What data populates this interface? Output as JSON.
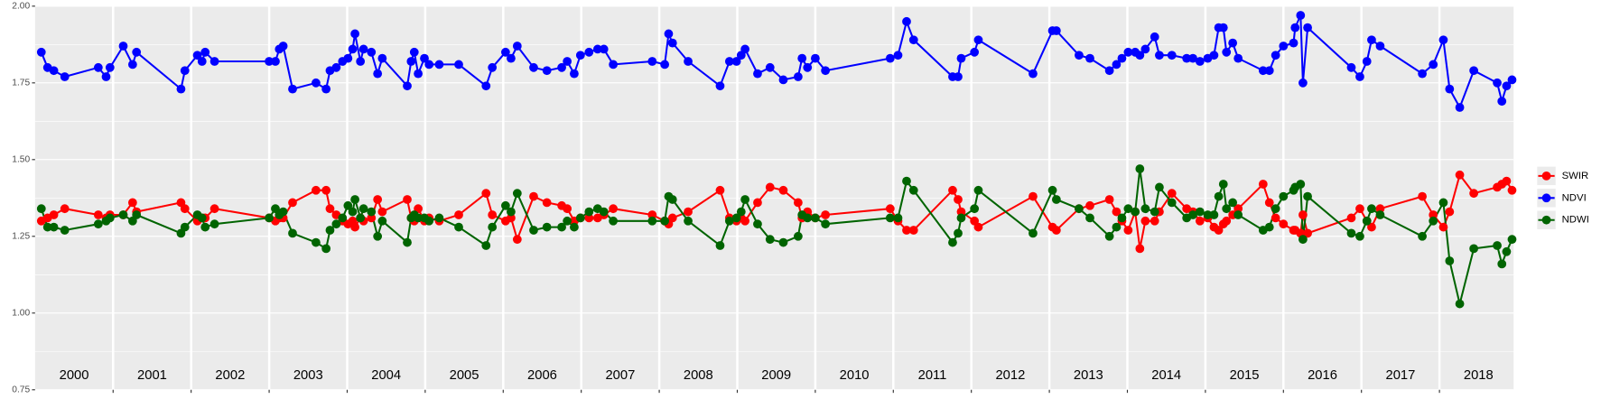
{
  "chart_data": {
    "type": "line",
    "x": [
      2000.08,
      2000.16,
      2000.24,
      2000.38,
      2000.81,
      2000.91,
      2000.96,
      2001.13,
      2001.25,
      2001.3,
      2001.87,
      2001.92,
      2002.08,
      2002.14,
      2002.18,
      2002.3,
      2003.0,
      2003.08,
      2003.13,
      2003.18,
      2003.3,
      2003.6,
      2003.73,
      2003.78,
      2003.86,
      2003.94,
      2004.01,
      2004.07,
      2004.1,
      2004.17,
      2004.21,
      2004.31,
      2004.39,
      2004.45,
      2004.77,
      2004.82,
      2004.86,
      2004.91,
      2004.99,
      2005.05,
      2005.18,
      2005.43,
      2005.78,
      2005.86,
      2006.03,
      2006.1,
      2006.18,
      2006.39,
      2006.56,
      2006.75,
      2006.82,
      2006.91,
      2006.99,
      2007.1,
      2007.21,
      2007.29,
      2007.41,
      2007.91,
      2008.07,
      2008.12,
      2008.17,
      2008.37,
      2008.78,
      2008.9,
      2008.99,
      2009.05,
      2009.1,
      2009.26,
      2009.42,
      2009.59,
      2009.78,
      2009.83,
      2009.9,
      2010.0,
      2010.13,
      2010.96,
      2011.06,
      2011.17,
      2011.26,
      2011.76,
      2011.83,
      2011.87,
      2012.04,
      2012.09,
      2012.79,
      2013.04,
      2013.09,
      2013.38,
      2013.52,
      2013.77,
      2013.86,
      2013.93,
      2014.01,
      2014.1,
      2014.16,
      2014.23,
      2014.35,
      2014.41,
      2014.57,
      2014.76,
      2014.84,
      2014.93,
      2015.03,
      2015.11,
      2015.17,
      2015.23,
      2015.27,
      2015.35,
      2015.42,
      2015.74,
      2015.82,
      2015.9,
      2016.0,
      2016.13,
      2016.15,
      2016.22,
      2016.25,
      2016.31,
      2016.87,
      2016.98,
      2017.07,
      2017.13,
      2017.24,
      2017.78,
      2017.92,
      2018.05,
      2018.13,
      2018.26,
      2018.44,
      2018.74,
      2018.8,
      2018.86,
      2018.93
    ],
    "series": [
      {
        "name": "SWIR",
        "color": "#ff0000",
        "values": [
          1.3,
          1.31,
          1.32,
          1.34,
          1.32,
          1.31,
          1.32,
          1.32,
          1.36,
          1.33,
          1.36,
          1.34,
          1.3,
          1.31,
          1.31,
          1.34,
          1.31,
          1.3,
          1.31,
          1.31,
          1.36,
          1.4,
          1.4,
          1.34,
          1.32,
          1.3,
          1.29,
          1.3,
          1.28,
          1.31,
          1.3,
          1.31,
          1.37,
          1.33,
          1.37,
          1.31,
          1.3,
          1.34,
          1.3,
          1.31,
          1.3,
          1.32,
          1.39,
          1.32,
          1.3,
          1.31,
          1.24,
          1.38,
          1.36,
          1.35,
          1.34,
          1.3,
          1.31,
          1.31,
          1.31,
          1.32,
          1.34,
          1.32,
          1.3,
          1.29,
          1.31,
          1.33,
          1.4,
          1.31,
          1.3,
          1.31,
          1.3,
          1.36,
          1.41,
          1.4,
          1.36,
          1.31,
          1.33,
          1.31,
          1.32,
          1.34,
          1.3,
          1.27,
          1.27,
          1.4,
          1.37,
          1.33,
          1.3,
          1.28,
          1.38,
          1.28,
          1.27,
          1.34,
          1.35,
          1.37,
          1.33,
          1.3,
          1.27,
          1.33,
          1.21,
          1.3,
          1.3,
          1.33,
          1.39,
          1.34,
          1.33,
          1.3,
          1.31,
          1.28,
          1.27,
          1.29,
          1.3,
          1.32,
          1.34,
          1.42,
          1.36,
          1.31,
          1.29,
          1.27,
          1.27,
          1.26,
          1.32,
          1.26,
          1.31,
          1.34,
          1.3,
          1.28,
          1.34,
          1.38,
          1.32,
          1.28,
          1.33,
          1.45,
          1.39,
          1.41,
          1.42,
          1.43,
          1.4
        ]
      },
      {
        "name": "NDVI",
        "color": "#0000ff",
        "values": [
          1.85,
          1.8,
          1.79,
          1.77,
          1.8,
          1.77,
          1.8,
          1.87,
          1.81,
          1.85,
          1.73,
          1.79,
          1.84,
          1.82,
          1.85,
          1.82,
          1.82,
          1.82,
          1.86,
          1.87,
          1.73,
          1.75,
          1.73,
          1.79,
          1.8,
          1.82,
          1.83,
          1.86,
          1.91,
          1.82,
          1.86,
          1.85,
          1.78,
          1.83,
          1.74,
          1.82,
          1.85,
          1.78,
          1.83,
          1.81,
          1.81,
          1.81,
          1.74,
          1.8,
          1.85,
          1.83,
          1.87,
          1.8,
          1.79,
          1.8,
          1.82,
          1.78,
          1.84,
          1.85,
          1.86,
          1.86,
          1.81,
          1.82,
          1.81,
          1.91,
          1.88,
          1.82,
          1.74,
          1.82,
          1.82,
          1.84,
          1.86,
          1.78,
          1.8,
          1.76,
          1.77,
          1.83,
          1.8,
          1.83,
          1.79,
          1.83,
          1.84,
          1.95,
          1.89,
          1.77,
          1.77,
          1.83,
          1.85,
          1.89,
          1.78,
          1.92,
          1.92,
          1.84,
          1.83,
          1.79,
          1.81,
          1.83,
          1.85,
          1.85,
          1.84,
          1.86,
          1.9,
          1.84,
          1.84,
          1.83,
          1.83,
          1.82,
          1.83,
          1.84,
          1.93,
          1.93,
          1.85,
          1.88,
          1.83,
          1.79,
          1.79,
          1.84,
          1.87,
          1.88,
          1.93,
          1.97,
          1.75,
          1.93,
          1.8,
          1.77,
          1.82,
          1.89,
          1.87,
          1.78,
          1.81,
          1.89,
          1.73,
          1.67,
          1.79,
          1.75,
          1.69,
          1.74,
          1.76
        ]
      },
      {
        "name": "NDWI",
        "color": "#006400",
        "values": [
          1.34,
          1.28,
          1.28,
          1.27,
          1.29,
          1.3,
          1.31,
          1.32,
          1.3,
          1.32,
          1.26,
          1.28,
          1.32,
          1.31,
          1.28,
          1.29,
          1.31,
          1.34,
          1.32,
          1.33,
          1.26,
          1.23,
          1.21,
          1.27,
          1.29,
          1.31,
          1.35,
          1.33,
          1.37,
          1.31,
          1.34,
          1.33,
          1.25,
          1.3,
          1.23,
          1.31,
          1.32,
          1.31,
          1.31,
          1.3,
          1.31,
          1.28,
          1.22,
          1.28,
          1.35,
          1.33,
          1.39,
          1.27,
          1.28,
          1.28,
          1.3,
          1.28,
          1.31,
          1.33,
          1.34,
          1.33,
          1.3,
          1.3,
          1.3,
          1.38,
          1.37,
          1.3,
          1.22,
          1.3,
          1.31,
          1.33,
          1.37,
          1.29,
          1.24,
          1.23,
          1.25,
          1.32,
          1.31,
          1.31,
          1.29,
          1.31,
          1.31,
          1.43,
          1.4,
          1.23,
          1.26,
          1.31,
          1.34,
          1.4,
          1.26,
          1.4,
          1.37,
          1.34,
          1.31,
          1.25,
          1.28,
          1.31,
          1.34,
          1.33,
          1.47,
          1.34,
          1.33,
          1.41,
          1.36,
          1.31,
          1.32,
          1.33,
          1.32,
          1.32,
          1.38,
          1.42,
          1.34,
          1.36,
          1.32,
          1.27,
          1.28,
          1.34,
          1.38,
          1.4,
          1.41,
          1.42,
          1.24,
          1.38,
          1.26,
          1.25,
          1.3,
          1.34,
          1.32,
          1.25,
          1.3,
          1.36,
          1.17,
          1.03,
          1.21,
          1.22,
          1.16,
          1.2,
          1.24
        ]
      }
    ],
    "xlim": [
      2000,
      2018.95
    ],
    "xticks": [
      2001,
      2002,
      2003,
      2004,
      2005,
      2006,
      2007,
      2008,
      2009,
      2010,
      2011,
      2012,
      2013,
      2014,
      2015,
      2016,
      2017,
      2018
    ],
    "ylim": [
      0.75,
      2.0
    ],
    "yticks": [
      0.75,
      {
        "value": 1,
        "label": "1.00"
      },
      1.25,
      {
        "value": 1.5,
        "label": "1.50"
      },
      1.75,
      {
        "value": 2,
        "label": "2.00"
      }
    ],
    "minor_yticks": [
      0.875,
      1.125,
      1.375,
      1.625,
      1.875
    ],
    "grid": true,
    "legend": "right",
    "annotations": [
      {
        "text": "2000",
        "x": 2000.5
      },
      {
        "text": "2001",
        "x": 2001.5
      },
      {
        "text": "2002",
        "x": 2002.5
      },
      {
        "text": "2003",
        "x": 2003.5
      },
      {
        "text": "2004",
        "x": 2004.5
      },
      {
        "text": "2005",
        "x": 2005.5
      },
      {
        "text": "2006",
        "x": 2006.5
      },
      {
        "text": "2007",
        "x": 2007.5
      },
      {
        "text": "2008",
        "x": 2008.5
      },
      {
        "text": "2009",
        "x": 2009.5
      },
      {
        "text": "2010",
        "x": 2010.5
      },
      {
        "text": "2011",
        "x": 2011.5
      },
      {
        "text": "2012",
        "x": 2012.5
      },
      {
        "text": "2013",
        "x": 2013.5
      },
      {
        "text": "2014",
        "x": 2014.5
      },
      {
        "text": "2015",
        "x": 2015.5
      },
      {
        "text": "2016",
        "x": 2016.5
      },
      {
        "text": "2017",
        "x": 2017.5
      },
      {
        "text": "2018",
        "x": 2018.5
      }
    ]
  }
}
